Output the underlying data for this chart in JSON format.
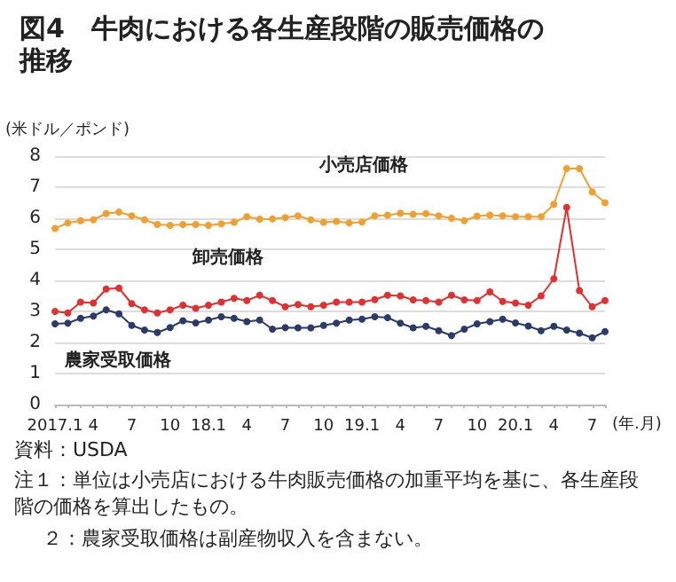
{
  "chart_data": {
    "type": "line",
    "title": "図4　牛肉における各生産段階の販売価格の推移",
    "ylabel": "(米ドル／ポンド)",
    "xlabel": "(年.月)",
    "categories": [
      "2017.1",
      null,
      null,
      "4",
      null,
      null,
      "7",
      null,
      null,
      "10",
      null,
      null,
      "18.1",
      null,
      null,
      "4",
      null,
      null,
      "7",
      null,
      null,
      "10",
      null,
      null,
      "19.1",
      null,
      null,
      "4",
      null,
      null,
      "7",
      null,
      null,
      "10",
      null,
      null,
      "20.1",
      null,
      null,
      "4",
      null,
      null,
      "7",
      null
    ],
    "series": [
      {
        "name": "小売店価格",
        "color": "#f0a030",
        "values": [
          5.67,
          5.85,
          5.92,
          5.95,
          6.15,
          6.2,
          6.08,
          5.95,
          5.8,
          5.77,
          5.8,
          5.8,
          5.77,
          5.82,
          5.87,
          6.05,
          5.97,
          5.98,
          6.02,
          6.08,
          5.95,
          5.87,
          5.9,
          5.85,
          5.88,
          6.08,
          6.1,
          6.16,
          6.13,
          6.15,
          6.08,
          6.0,
          5.92,
          6.07,
          6.1,
          6.08,
          6.05,
          6.05,
          6.05,
          6.45,
          7.6,
          7.6,
          6.85,
          6.5
        ]
      },
      {
        "name": "卸売価格",
        "color": "#e03030",
        "values": [
          3.0,
          2.95,
          3.3,
          3.27,
          3.72,
          3.75,
          3.25,
          3.05,
          2.95,
          3.05,
          3.2,
          3.1,
          3.2,
          3.3,
          3.42,
          3.35,
          3.52,
          3.35,
          3.15,
          3.22,
          3.15,
          3.2,
          3.3,
          3.3,
          3.3,
          3.38,
          3.52,
          3.5,
          3.37,
          3.35,
          3.3,
          3.52,
          3.37,
          3.35,
          3.63,
          3.32,
          3.27,
          3.2,
          3.5,
          4.05,
          6.35,
          3.67,
          3.15,
          3.35
        ]
      },
      {
        "name": "農家受取価格",
        "color": "#2a3a6a",
        "values": [
          2.6,
          2.62,
          2.78,
          2.85,
          3.05,
          2.92,
          2.55,
          2.4,
          2.32,
          2.48,
          2.7,
          2.63,
          2.72,
          2.83,
          2.78,
          2.67,
          2.72,
          2.43,
          2.48,
          2.47,
          2.47,
          2.55,
          2.62,
          2.72,
          2.75,
          2.83,
          2.8,
          2.62,
          2.47,
          2.52,
          2.38,
          2.22,
          2.43,
          2.6,
          2.67,
          2.75,
          2.63,
          2.53,
          2.38,
          2.52,
          2.4,
          2.3,
          2.15,
          2.35
        ]
      }
    ],
    "ylim": [
      0,
      8
    ],
    "yticks": [
      0,
      1,
      2,
      3,
      4,
      5,
      6,
      7,
      8
    ],
    "grid": "y",
    "legend": false,
    "marker": "circle",
    "line_style": "solid",
    "annotations": [
      "資料：USDA",
      "注１：単位は小売店における牛肉販売価格の加重平均を基に、各生産段階の価格を算出したもの。",
      "２：農家受取価格は副産物収入を含まない。"
    ]
  }
}
